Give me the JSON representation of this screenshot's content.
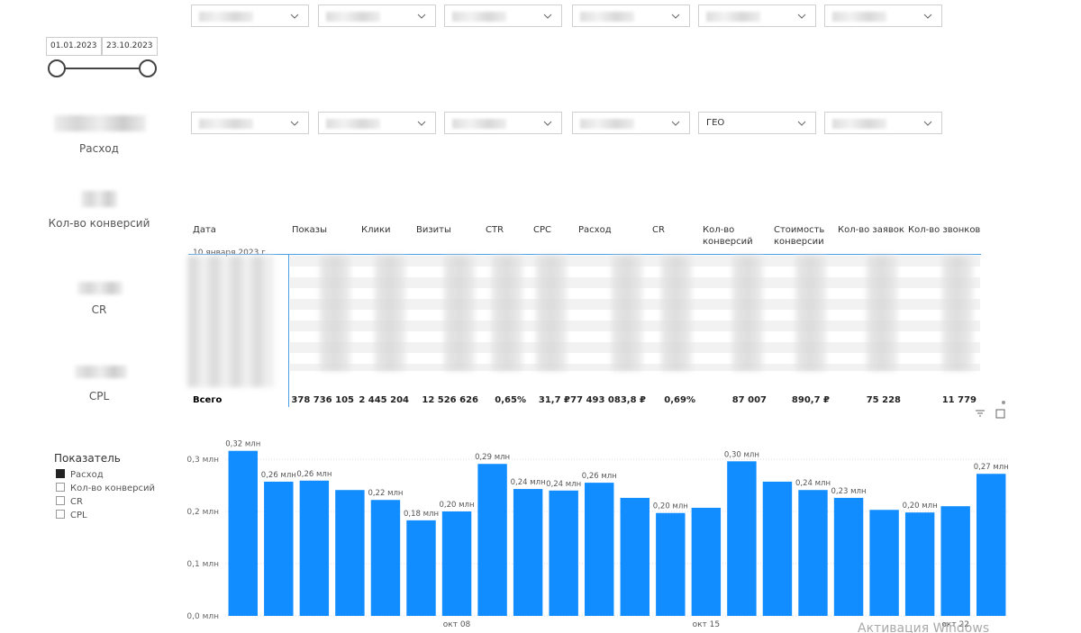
{
  "date_range": {
    "start": "01.01.2023",
    "end": "23.10.2023"
  },
  "filters": {
    "geo": "ГЕО"
  },
  "kpis": [
    "Расход",
    "Кол-во конверсий",
    "CR",
    "CPL"
  ],
  "table": {
    "headers": [
      "Дата",
      "Показы",
      "Клики",
      "Визиты",
      "CTR",
      "CPC",
      "Расход",
      "CR",
      "Кол-во конверсий",
      "Стоимость конверсии",
      "Кол-во заявок",
      "Кол-во звонков"
    ],
    "first_row_date": "10 января 2023 г.",
    "total_label": "Всего",
    "totals": [
      "378 736 105",
      "2 445 204",
      "12 526 626",
      "0,65%",
      "31,7 ₽",
      "77 493 083,8 ₽",
      "0,69%",
      "87 007",
      "890,7 ₽",
      "75 228",
      "11 779"
    ]
  },
  "legend": {
    "title": "Показатель",
    "items": [
      "Расход",
      "Кол-во конверсий",
      "CR",
      "CPL"
    ]
  },
  "chart_data": {
    "type": "bar",
    "color": "#118dff",
    "categories": [
      null,
      null,
      null,
      null,
      null,
      null,
      "окт 08",
      null,
      null,
      null,
      null,
      null,
      null,
      "окт 15",
      null,
      null,
      null,
      null,
      null,
      null,
      "окт 22",
      null
    ],
    "values": [
      0.316,
      0.257,
      0.259,
      0.241,
      0.222,
      0.183,
      0.2,
      0.291,
      0.243,
      0.24,
      0.255,
      0.226,
      0.197,
      0.207,
      0.296,
      0.257,
      0.241,
      0.226,
      0.203,
      0.198,
      0.21,
      0.272
    ],
    "value_labels": [
      "0,32 млн",
      "0,26 млн",
      "0,26 млн",
      null,
      "0,22 млн",
      "0,18 млн",
      "0,20 млн",
      "0,29 млн",
      "0,24 млн",
      "0,24 млн",
      "0,26 млн",
      null,
      "0,20 млн",
      null,
      "0,30 млн",
      null,
      "0,24 млн",
      "0,23 млн",
      null,
      "0,20 млн",
      null,
      "0,27 млн"
    ],
    "ylim": [
      0,
      0.33
    ],
    "yticks": [
      {
        "value": 0,
        "label": "0,0 млн"
      },
      {
        "value": 0.1,
        "label": "0,1 млн"
      },
      {
        "value": 0.2,
        "label": "0,2 млн"
      },
      {
        "value": 0.3,
        "label": "0,3 млн"
      }
    ],
    "grid": true
  },
  "watermark": "Активация Windows"
}
